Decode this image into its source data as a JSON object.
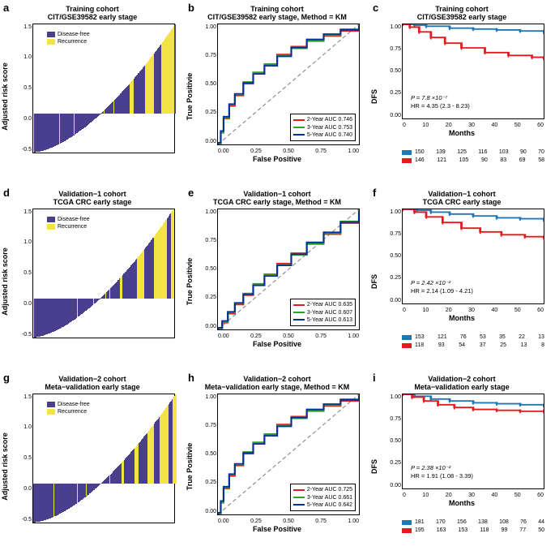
{
  "colors": {
    "purple": "#4a3f8f",
    "yellow": "#f3e444",
    "blue": "#1f77b4",
    "red": "#e41a1c",
    "green": "#2ca02c",
    "darkblue": "#003399",
    "grey": "#888888",
    "axis": "#000000",
    "bg": "#ffffff"
  },
  "panels": {
    "a": {
      "letter": "a",
      "title_l1": "Training cohort",
      "title_l2": "CIT/GSE39582 early stage",
      "ylabel": "Adjusted risk score",
      "legend": {
        "l1": "Disease-free",
        "l2": "Recurrence"
      },
      "yticks": [
        "1.5",
        "1.0",
        "0.5",
        "0.0",
        "-0.5"
      ],
      "ylim": [
        -0.7,
        1.6
      ],
      "n_bars": 296
    },
    "b": {
      "letter": "b",
      "title_l1": "Training cohort",
      "title_l2": "CIT/GSE39582 early stage, Method = KM",
      "ylabel": "True Positivie",
      "xlabel": "False Positive",
      "xticks": [
        "0.00",
        "0.25",
        "0.50",
        "0.75",
        "1.00"
      ],
      "yticks": [
        "1.00",
        "0.75",
        "0.50",
        "0.25",
        "0.00"
      ],
      "series": [
        {
          "label": "2-Year AUC 0.746",
          "color": "#e41a1c"
        },
        {
          "label": "3-Year AUC 0.753",
          "color": "#2ca02c"
        },
        {
          "label": "5-Year AUC 0.740",
          "color": "#003399"
        }
      ]
    },
    "c": {
      "letter": "c",
      "title_l1": "Training cohort",
      "title_l2": "CIT/GSE39582 early stage",
      "ylabel": "DFS",
      "xlabel": "Months",
      "xticks": [
        "0",
        "10",
        "20",
        "30",
        "40",
        "50",
        "60"
      ],
      "yticks": [
        "1.00",
        "0.75",
        "0.50",
        "0.25",
        "0.00"
      ],
      "pval": "P = 7.8 ×10⁻⁷",
      "hr": "HR = 4.35  (2.3  - 8.23)",
      "risk_table": {
        "blue": [
          "150",
          "139",
          "125",
          "116",
          "103",
          "90",
          "70"
        ],
        "red": [
          "146",
          "121",
          "105",
          "90",
          "83",
          "69",
          "58"
        ]
      }
    },
    "d": {
      "letter": "d",
      "title_l1": "Validation−1 cohort",
      "title_l2": "TCGA CRC early stage",
      "ylabel": "Adjusted risk score",
      "legend": {
        "l1": "Disease-free",
        "l2": "Recurrence"
      },
      "yticks": [
        "1.5",
        "1.0",
        "0.5",
        "0.0",
        "-0.5"
      ],
      "ylim": [
        -0.7,
        1.6
      ],
      "n_bars": 271
    },
    "e": {
      "letter": "e",
      "title_l1": "Validation−1 cohort",
      "title_l2": "TCGA CRC early stage, Method = KM",
      "ylabel": "True Positivie",
      "xlabel": "False Positive",
      "xticks": [
        "0.00",
        "0.25",
        "0.50",
        "0.75",
        "1.00"
      ],
      "yticks": [
        "1.00",
        "0.75",
        "0.50",
        "0.25",
        "0.00"
      ],
      "series": [
        {
          "label": "2-Year AUC 0.635",
          "color": "#e41a1c"
        },
        {
          "label": "3-Year AUC 0.607",
          "color": "#2ca02c"
        },
        {
          "label": "5-Year AUC 0.613",
          "color": "#003399"
        }
      ]
    },
    "f": {
      "letter": "f",
      "title_l1": "Validation−1 cohort",
      "title_l2": "TCGA CRC early stage",
      "ylabel": "DFS",
      "xlabel": "Months",
      "xticks": [
        "0",
        "10",
        "20",
        "30",
        "40",
        "50",
        "60"
      ],
      "yticks": [
        "1.00",
        "0.75",
        "0.50",
        "0.25",
        "0.00"
      ],
      "pval": "P = 2.42 ×10⁻²",
      "hr": "HR = 2.14  (1.09  - 4.21)",
      "risk_table": {
        "blue": [
          "153",
          "121",
          "76",
          "53",
          "35",
          "22",
          "13"
        ],
        "red": [
          "118",
          "93",
          "54",
          "37",
          "25",
          "13",
          "8"
        ]
      }
    },
    "g": {
      "letter": "g",
      "title_l1": "Validation−2 cohort",
      "title_l2": "Meta−validation early stage",
      "ylabel": "Adjusted risk score",
      "legend": {
        "l1": "Disease-free",
        "l2": "Recurrence"
      },
      "yticks": [
        "1.5",
        "1.0",
        "0.5",
        "0.0",
        "-0.5"
      ],
      "ylim": [
        -0.7,
        1.6
      ],
      "n_bars": 376
    },
    "h": {
      "letter": "h",
      "title_l1": "Validation−2 cohort",
      "title_l2": "Meta−validation early stage, Method = KM",
      "ylabel": "True Positivie",
      "xlabel": "False Positive",
      "xticks": [
        "0.00",
        "0.25",
        "0.50",
        "0.75",
        "1.00"
      ],
      "yticks": [
        "1.00",
        "0.75",
        "0.50",
        "0.25",
        "0.00"
      ],
      "series": [
        {
          "label": "2-Year AUC 0.725",
          "color": "#e41a1c"
        },
        {
          "label": "3-Year AUC 0.661",
          "color": "#2ca02c"
        },
        {
          "label": "5-Year AUC 0.642",
          "color": "#003399"
        }
      ]
    },
    "i": {
      "letter": "i",
      "title_l1": "Validation−2 cohort",
      "title_l2": "Meta−validation early stage",
      "ylabel": "DFS",
      "xlabel": "Months",
      "xticks": [
        "0",
        "10",
        "20",
        "30",
        "40",
        "50",
        "60"
      ],
      "yticks": [
        "1.00",
        "0.75",
        "0.50",
        "0.25",
        "0.00"
      ],
      "pval": "P = 2.38 ×10⁻²",
      "hr": "HR = 1.91  (1.08  - 3.39)",
      "risk_table": {
        "blue": [
          "181",
          "170",
          "156",
          "138",
          "108",
          "76",
          "44"
        ],
        "red": [
          "195",
          "163",
          "153",
          "118",
          "99",
          "77",
          "50"
        ]
      }
    }
  },
  "roc_shape": {
    "high_auc": [
      [
        0,
        0
      ],
      [
        0.02,
        0.1
      ],
      [
        0.04,
        0.22
      ],
      [
        0.08,
        0.33
      ],
      [
        0.12,
        0.42
      ],
      [
        0.18,
        0.52
      ],
      [
        0.25,
        0.6
      ],
      [
        0.33,
        0.67
      ],
      [
        0.42,
        0.74
      ],
      [
        0.52,
        0.8
      ],
      [
        0.63,
        0.86
      ],
      [
        0.75,
        0.91
      ],
      [
        0.87,
        0.96
      ],
      [
        1,
        1
      ]
    ],
    "mid_auc": [
      [
        0,
        0
      ],
      [
        0.03,
        0.06
      ],
      [
        0.07,
        0.14
      ],
      [
        0.12,
        0.22
      ],
      [
        0.18,
        0.3
      ],
      [
        0.25,
        0.38
      ],
      [
        0.33,
        0.46
      ],
      [
        0.42,
        0.54
      ],
      [
        0.52,
        0.62
      ],
      [
        0.63,
        0.71
      ],
      [
        0.75,
        0.8
      ],
      [
        0.87,
        0.9
      ],
      [
        1,
        1
      ]
    ]
  },
  "km_shape": {
    "c_blue": [
      [
        0,
        1.0
      ],
      [
        5,
        0.99
      ],
      [
        10,
        0.98
      ],
      [
        20,
        0.96
      ],
      [
        30,
        0.95
      ],
      [
        40,
        0.94
      ],
      [
        50,
        0.93
      ],
      [
        60,
        0.92
      ]
    ],
    "c_red": [
      [
        0,
        1.0
      ],
      [
        3,
        0.97
      ],
      [
        7,
        0.92
      ],
      [
        12,
        0.86
      ],
      [
        18,
        0.8
      ],
      [
        25,
        0.75
      ],
      [
        35,
        0.7
      ],
      [
        45,
        0.67
      ],
      [
        55,
        0.65
      ],
      [
        60,
        0.64
      ]
    ],
    "f_blue": [
      [
        0,
        1.0
      ],
      [
        6,
        0.99
      ],
      [
        12,
        0.97
      ],
      [
        20,
        0.95
      ],
      [
        30,
        0.93
      ],
      [
        40,
        0.91
      ],
      [
        50,
        0.9
      ],
      [
        60,
        0.89
      ]
    ],
    "f_red": [
      [
        0,
        1.0
      ],
      [
        5,
        0.97
      ],
      [
        10,
        0.92
      ],
      [
        17,
        0.86
      ],
      [
        25,
        0.8
      ],
      [
        33,
        0.76
      ],
      [
        42,
        0.73
      ],
      [
        52,
        0.71
      ],
      [
        60,
        0.7
      ]
    ],
    "i_blue": [
      [
        0,
        1.0
      ],
      [
        5,
        0.98
      ],
      [
        12,
        0.95
      ],
      [
        20,
        0.93
      ],
      [
        30,
        0.91
      ],
      [
        40,
        0.9
      ],
      [
        50,
        0.89
      ],
      [
        60,
        0.88
      ]
    ],
    "i_red": [
      [
        0,
        1.0
      ],
      [
        4,
        0.97
      ],
      [
        9,
        0.93
      ],
      [
        15,
        0.89
      ],
      [
        22,
        0.86
      ],
      [
        30,
        0.84
      ],
      [
        40,
        0.83
      ],
      [
        50,
        0.82
      ],
      [
        60,
        0.82
      ]
    ]
  }
}
